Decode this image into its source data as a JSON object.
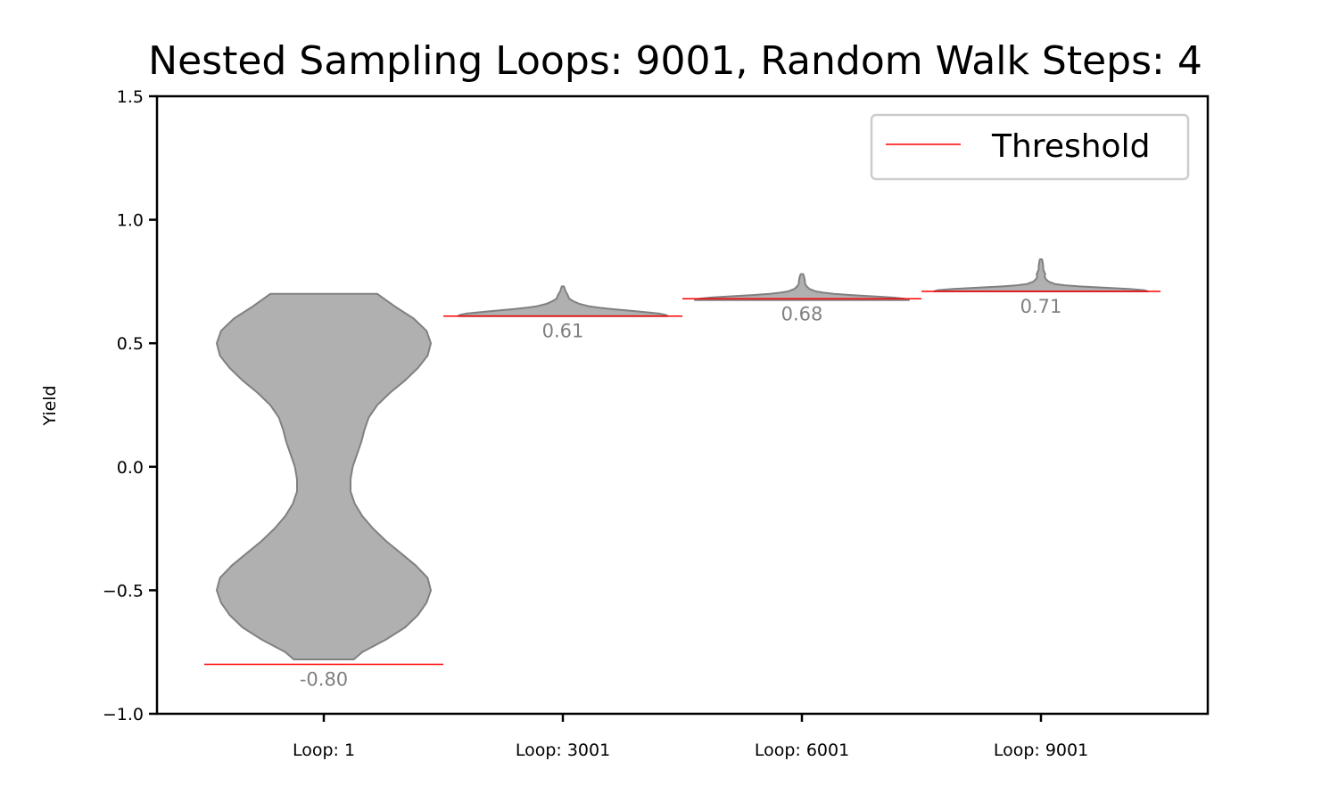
{
  "chart_data": {
    "type": "violin",
    "title": "Nested Sampling Loops: 9001, Random Walk Steps: 4",
    "xlabel": "",
    "ylabel": "Yield",
    "ylim": [
      -1.0,
      1.5
    ],
    "yticks": [
      -1.0,
      -0.5,
      0.0,
      0.5,
      1.0,
      1.5
    ],
    "ytick_labels": [
      "−1.0",
      "−0.5",
      "0.0",
      "0.5",
      "1.0",
      "1.5"
    ],
    "categories": [
      "Loop: 1",
      "Loop: 3001",
      "Loop: 6001",
      "Loop: 9001"
    ],
    "thresholds": [
      -0.8,
      0.61,
      0.68,
      0.71
    ],
    "threshold_labels": [
      "-0.80",
      "0.61",
      "0.68",
      "0.71"
    ],
    "grid": false,
    "legend": {
      "position": "top-right",
      "entries": [
        {
          "name": "Threshold",
          "color": "#ff0000"
        }
      ]
    },
    "colors": {
      "violin_fill": "#b0b0b0",
      "violin_edge": "#808080",
      "threshold": "#ff0000",
      "threshold_label": "#808080"
    },
    "violins": [
      {
        "category": "Loop: 1",
        "profile": [
          [
            -0.78,
            0.28
          ],
          [
            -0.75,
            0.36
          ],
          [
            -0.7,
            0.58
          ],
          [
            -0.65,
            0.76
          ],
          [
            -0.6,
            0.88
          ],
          [
            -0.55,
            0.96
          ],
          [
            -0.5,
            1.0
          ],
          [
            -0.45,
            0.97
          ],
          [
            -0.4,
            0.86
          ],
          [
            -0.35,
            0.72
          ],
          [
            -0.3,
            0.58
          ],
          [
            -0.25,
            0.46
          ],
          [
            -0.2,
            0.36
          ],
          [
            -0.15,
            0.29
          ],
          [
            -0.1,
            0.25
          ],
          [
            -0.05,
            0.25
          ],
          [
            0.0,
            0.27
          ],
          [
            0.05,
            0.31
          ],
          [
            0.1,
            0.35
          ],
          [
            0.15,
            0.38
          ],
          [
            0.2,
            0.42
          ],
          [
            0.25,
            0.5
          ],
          [
            0.3,
            0.62
          ],
          [
            0.35,
            0.76
          ],
          [
            0.4,
            0.88
          ],
          [
            0.45,
            0.97
          ],
          [
            0.5,
            1.0
          ],
          [
            0.55,
            0.96
          ],
          [
            0.6,
            0.84
          ],
          [
            0.65,
            0.66
          ],
          [
            0.7,
            0.5
          ]
        ]
      },
      {
        "category": "Loop: 3001",
        "profile": [
          [
            0.61,
            0.98
          ],
          [
            0.615,
            0.96
          ],
          [
            0.62,
            0.9
          ],
          [
            0.625,
            0.8
          ],
          [
            0.63,
            0.68
          ],
          [
            0.635,
            0.54
          ],
          [
            0.64,
            0.42
          ],
          [
            0.645,
            0.32
          ],
          [
            0.65,
            0.24
          ],
          [
            0.66,
            0.15
          ],
          [
            0.67,
            0.1
          ],
          [
            0.68,
            0.06
          ],
          [
            0.69,
            0.05
          ],
          [
            0.7,
            0.04
          ],
          [
            0.71,
            0.025
          ],
          [
            0.72,
            0.018
          ],
          [
            0.73,
            0.01
          ]
        ]
      },
      {
        "category": "Loop: 6001",
        "profile": [
          [
            0.675,
            1.0
          ],
          [
            0.68,
            0.96
          ],
          [
            0.685,
            0.85
          ],
          [
            0.69,
            0.66
          ],
          [
            0.695,
            0.46
          ],
          [
            0.7,
            0.3
          ],
          [
            0.705,
            0.2
          ],
          [
            0.71,
            0.13
          ],
          [
            0.72,
            0.07
          ],
          [
            0.73,
            0.045
          ],
          [
            0.74,
            0.03
          ],
          [
            0.75,
            0.028
          ],
          [
            0.76,
            0.025
          ],
          [
            0.77,
            0.02
          ],
          [
            0.78,
            0.012
          ]
        ]
      },
      {
        "category": "Loop: 9001",
        "profile": [
          [
            0.71,
            1.0
          ],
          [
            0.715,
            0.96
          ],
          [
            0.72,
            0.82
          ],
          [
            0.725,
            0.58
          ],
          [
            0.73,
            0.36
          ],
          [
            0.735,
            0.22
          ],
          [
            0.74,
            0.13
          ],
          [
            0.75,
            0.07
          ],
          [
            0.76,
            0.045
          ],
          [
            0.77,
            0.035
          ],
          [
            0.78,
            0.04
          ],
          [
            0.79,
            0.03
          ],
          [
            0.8,
            0.02
          ],
          [
            0.81,
            0.022
          ],
          [
            0.82,
            0.018
          ],
          [
            0.83,
            0.015
          ],
          [
            0.84,
            0.01
          ]
        ]
      }
    ]
  }
}
